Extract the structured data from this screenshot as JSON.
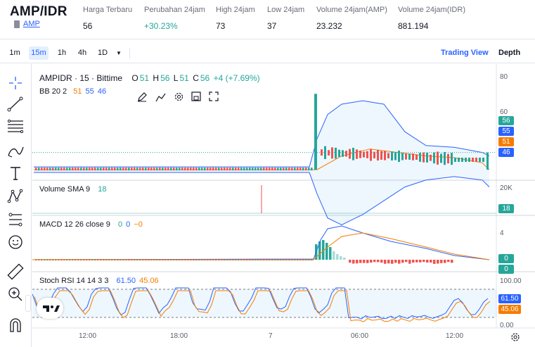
{
  "pair": {
    "title": "AMP/IDR",
    "sub": "AMP"
  },
  "stats": [
    {
      "label": "Harga Terbaru",
      "value": "56",
      "color": "#131722"
    },
    {
      "label": "Perubahan 24jam",
      "value": "+30.23%",
      "color": "#26a69a"
    },
    {
      "label": "High 24jam",
      "value": "73",
      "color": "#131722"
    },
    {
      "label": "Low 24jam",
      "value": "37",
      "color": "#131722"
    },
    {
      "label": "Volume 24jam(AMP)",
      "value": "23.232",
      "color": "#131722"
    },
    {
      "label": "Volume 24jam(IDR)",
      "value": "881.194",
      "color": "#131722"
    }
  ],
  "toolbar": {
    "intervals": [
      "1m",
      "15m",
      "1h",
      "4h",
      "1D"
    ],
    "active_interval": "15m",
    "trading_view": "Trading View",
    "depth": "Depth"
  },
  "sidebar_icons": [
    "crosshair-icon",
    "trend-line-icon",
    "fib-retracement-icon",
    "brush-icon",
    "text-icon",
    "pattern-icon",
    "prediction-icon",
    "emoji-icon",
    "ruler-icon",
    "zoom-in-icon",
    "magnet-icon"
  ],
  "legend": {
    "symbol": "AMPIDR · 15 · Bittime",
    "ohlc": {
      "o_label": "O",
      "o": "51",
      "h_label": "H",
      "h": "56",
      "l_label": "L",
      "l": "51",
      "c_label": "C",
      "c": "56",
      "change": "+4 (+7.69%)"
    },
    "bb": {
      "name": "BB 20 2",
      "v1": "51",
      "v2": "55",
      "v3": "46"
    },
    "vol": {
      "name": "Volume SMA 9",
      "v": "18"
    },
    "macd": {
      "name": "MACD 12 26 close 9",
      "v1": "0",
      "v2": "0",
      "v3": "−0"
    },
    "rsi": {
      "name": "Stoch RSI 14 14 3 3",
      "v1": "61.50",
      "v2": "45.06"
    }
  },
  "price_axis": {
    "main_ticks": [
      "80",
      "60"
    ],
    "tags": [
      {
        "value": "56",
        "color": "#26a69a"
      },
      {
        "value": "55",
        "color": "#2962ff"
      },
      {
        "value": "51",
        "color": "#f57c00"
      },
      {
        "value": "46",
        "color": "#2962ff"
      }
    ],
    "vol_tick": "20K",
    "vol_tag": "18",
    "macd_tick": "4",
    "macd_tags": [
      "0",
      "0"
    ],
    "rsi_ticks": [
      "100.00",
      "0.00"
    ],
    "rsi_tags": [
      {
        "value": "61.50",
        "color": "#2962ff"
      },
      {
        "value": "45.06",
        "color": "#f57c00"
      }
    ]
  },
  "time_axis": [
    "12:00",
    "18:00",
    "7",
    "06:00",
    "12:00"
  ],
  "colors": {
    "up": "#26a69a",
    "down": "#ef5350",
    "bb": "#2962ff",
    "orange": "#f57c00"
  },
  "chart_data": {
    "type": "line",
    "title": "AMPIDR · 15 · Bittime",
    "ohlc": {
      "open": 51,
      "high": 56,
      "low": 51,
      "close": 56
    },
    "price_range": [
      40,
      80
    ],
    "bollinger": {
      "basis": 51,
      "upper": 55,
      "lower": 46
    },
    "volume_sma": 18,
    "stoch_rsi": {
      "k": 61.5,
      "d": 45.06
    }
  }
}
